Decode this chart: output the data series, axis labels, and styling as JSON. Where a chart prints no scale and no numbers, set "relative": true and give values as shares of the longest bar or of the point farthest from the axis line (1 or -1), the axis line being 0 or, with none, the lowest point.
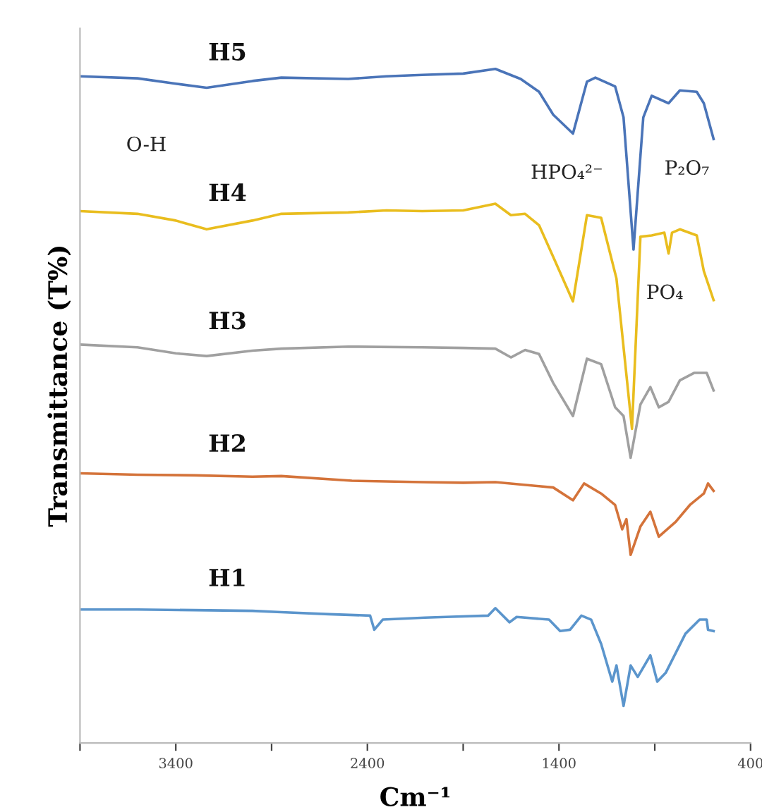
{
  "chart_data": {
    "type": "line",
    "relative": true,
    "xlabel": "Cm⁻¹",
    "ylabel": "Transmittance (T%)",
    "xlim": [
      3900,
      400
    ],
    "xticks": [
      {
        "value": 3900,
        "label": null
      },
      3400,
      {
        "value": 2900,
        "label": null
      },
      2400,
      {
        "value": 1900,
        "label": null
      },
      1400,
      {
        "value": 900,
        "label": null
      },
      400
    ],
    "tick_labels": "x",
    "grid": false,
    "legend": false,
    "marker": "none",
    "line_style": "solid",
    "annotations": [
      "O-H",
      "HPO₄²⁻",
      "P₂O₇",
      "PO₄"
    ],
    "series": [
      {
        "name": "H5",
        "color": "#4a74b8",
        "x": [
          3900,
          3600,
          3400,
          3239,
          3000,
          2849,
          2500,
          2300,
          2114,
          1900,
          1732,
          1600,
          1504,
          1430,
          1327,
          1254,
          1210,
          1107,
          1063,
          1011,
          960,
          916,
          828,
          769,
          681,
          644,
          593
        ],
        "values": [
          0.989,
          0.986,
          0.978,
          0.972,
          0.982,
          0.987,
          0.985,
          0.989,
          0.991,
          0.993,
          1.0,
          0.985,
          0.966,
          0.932,
          0.904,
          0.981,
          0.987,
          0.974,
          0.928,
          0.732,
          0.928,
          0.96,
          0.949,
          0.968,
          0.966,
          0.949,
          0.896
        ]
      },
      {
        "name": "H4",
        "color": "#e9bd1e",
        "x": [
          3900,
          3600,
          3400,
          3239,
          3000,
          2849,
          2500,
          2300,
          2114,
          1900,
          1732,
          1651,
          1577,
          1504,
          1430,
          1327,
          1254,
          1180,
          1100,
          1019,
          975,
          916,
          850,
          828,
          810,
          769,
          681,
          644,
          593
        ],
        "values": [
          0.789,
          0.785,
          0.775,
          0.762,
          0.775,
          0.785,
          0.787,
          0.79,
          0.789,
          0.79,
          0.8,
          0.783,
          0.785,
          0.768,
          0.721,
          0.655,
          0.783,
          0.779,
          0.689,
          0.466,
          0.751,
          0.753,
          0.757,
          0.726,
          0.757,
          0.762,
          0.753,
          0.7,
          0.657
        ]
      },
      {
        "name": "H3",
        "color": "#a0a0a0",
        "x": [
          3900,
          3600,
          3400,
          3239,
          3000,
          2849,
          2500,
          2114,
          1900,
          1732,
          1651,
          1577,
          1504,
          1430,
          1327,
          1254,
          1180,
          1107,
          1063,
          1026,
          975,
          923,
          879,
          828,
          769,
          695,
          629,
          593
        ],
        "values": [
          0.591,
          0.587,
          0.578,
          0.574,
          0.582,
          0.585,
          0.588,
          0.587,
          0.586,
          0.585,
          0.572,
          0.583,
          0.577,
          0.534,
          0.485,
          0.57,
          0.562,
          0.498,
          0.485,
          0.423,
          0.502,
          0.528,
          0.498,
          0.506,
          0.538,
          0.549,
          0.549,
          0.523
        ]
      },
      {
        "name": "H2",
        "color": "#d4733a",
        "x": [
          3900,
          3600,
          3300,
          3000,
          2849,
          2481,
          2114,
          1900,
          1732,
          1504,
          1430,
          1327,
          1269,
          1180,
          1107,
          1070,
          1048,
          1026,
          975,
          923,
          879,
          791,
          717,
          644,
          622,
          593
        ],
        "values": [
          0.4,
          0.398,
          0.397,
          0.395,
          0.396,
          0.389,
          0.387,
          0.386,
          0.387,
          0.381,
          0.379,
          0.36,
          0.385,
          0.37,
          0.353,
          0.317,
          0.332,
          0.279,
          0.321,
          0.343,
          0.306,
          0.328,
          0.353,
          0.37,
          0.385,
          0.374
        ]
      },
      {
        "name": "H1",
        "color": "#5b95cc",
        "x": [
          3900,
          3600,
          3300,
          3000,
          2849,
          2600,
          2386,
          2364,
          2320,
          2100,
          1989,
          1769,
          1732,
          1658,
          1621,
          1452,
          1394,
          1342,
          1283,
          1232,
          1180,
          1122,
          1100,
          1063,
          1026,
          989,
          923,
          887,
          843,
          740,
          666,
          629,
          622,
          593
        ],
        "values": [
          0.198,
          0.198,
          0.197,
          0.196,
          0.194,
          0.191,
          0.189,
          0.168,
          0.183,
          0.186,
          0.187,
          0.189,
          0.2,
          0.179,
          0.187,
          0.183,
          0.166,
          0.168,
          0.189,
          0.183,
          0.147,
          0.091,
          0.115,
          0.055,
          0.115,
          0.098,
          0.13,
          0.091,
          0.104,
          0.162,
          0.183,
          0.183,
          0.168,
          0.166
        ]
      }
    ]
  }
}
